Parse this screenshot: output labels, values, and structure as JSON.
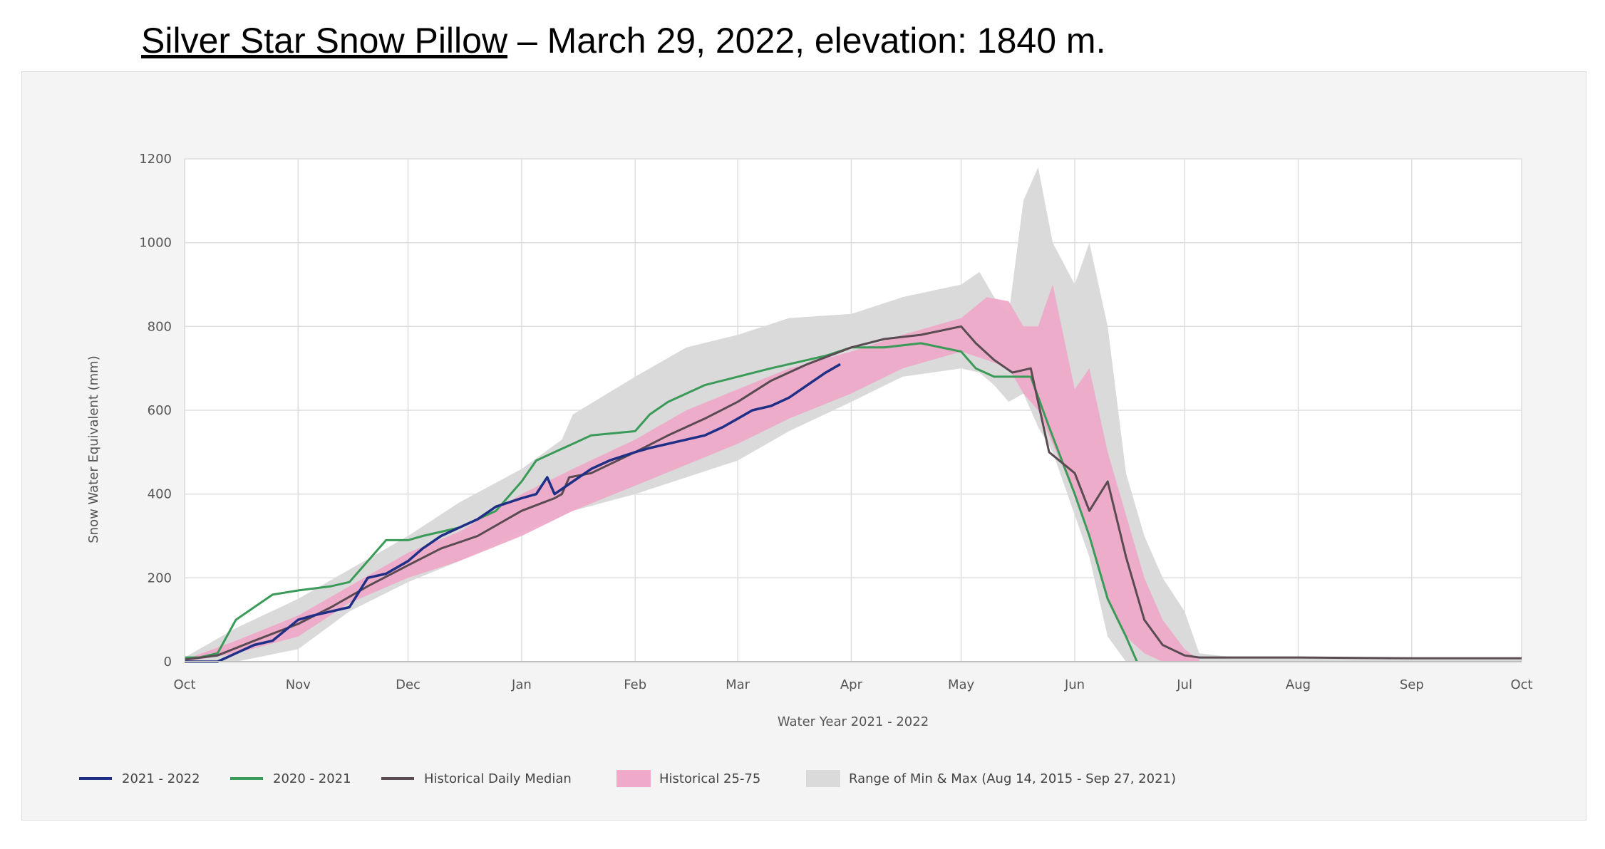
{
  "title": {
    "name": "Silver Star Snow Pillow",
    "rest": " – March 29, 2022, elevation: 1840 m."
  },
  "chart_data": {
    "type": "area",
    "xlabel": "Water Year 2021 - 2022",
    "ylabel": "Snow Water Equivalent (mm)",
    "ylim": [
      0,
      1200
    ],
    "yticks": [
      "0",
      "200",
      "400",
      "600",
      "800",
      "1000",
      "1200"
    ],
    "xlim": [
      "2021-10-01",
      "2022-10-01"
    ],
    "xticks": [
      {
        "date": "2021-10-01",
        "label": "Oct"
      },
      {
        "date": "2021-11-01",
        "label": "Nov"
      },
      {
        "date": "2021-12-01",
        "label": "Dec"
      },
      {
        "date": "2022-01-01",
        "label": "Jan"
      },
      {
        "date": "2022-02-01",
        "label": "Feb"
      },
      {
        "date": "2022-03-01",
        "label": "Mar"
      },
      {
        "date": "2022-04-01",
        "label": "Apr"
      },
      {
        "date": "2022-05-01",
        "label": "May"
      },
      {
        "date": "2022-06-01",
        "label": "Jun"
      },
      {
        "date": "2022-07-01",
        "label": "Jul"
      },
      {
        "date": "2022-08-01",
        "label": "Aug"
      },
      {
        "date": "2022-09-01",
        "label": "Sep"
      },
      {
        "date": "2022-10-01",
        "label": "Oct"
      }
    ],
    "grid": true,
    "legend_position": "bottom-left",
    "colors": {
      "current": "#1f2f86",
      "previous": "#3a9a58",
      "median": "#5a4a52",
      "p25_75": "#eeaac8",
      "minmax": "#dadada"
    },
    "legend": [
      {
        "label": "2021 - 2022",
        "kind": "line",
        "key": "current"
      },
      {
        "label": "2020 - 2021",
        "kind": "line",
        "key": "previous"
      },
      {
        "label": "Historical Daily Median",
        "kind": "line",
        "key": "median"
      },
      {
        "label": "Historical 25-75",
        "kind": "band",
        "key": "p25_75"
      },
      {
        "label": "Range of Min & Max (Aug 14, 2015 - Sep 27, 2021)",
        "kind": "band",
        "key": "minmax"
      }
    ],
    "bands": [
      {
        "name": "Range of Min & Max (Aug 14, 2015 - Sep 27, 2021)",
        "key": "minmax",
        "x": [
          "2021-10-01",
          "2021-10-15",
          "2021-11-01",
          "2021-11-15",
          "2021-12-01",
          "2021-12-15",
          "2022-01-01",
          "2022-01-12",
          "2022-01-15",
          "2022-02-01",
          "2022-02-15",
          "2022-03-01",
          "2022-03-15",
          "2022-04-01",
          "2022-04-15",
          "2022-05-01",
          "2022-05-06",
          "2022-05-10",
          "2022-05-14",
          "2022-05-18",
          "2022-05-22",
          "2022-05-26",
          "2022-06-01",
          "2022-06-05",
          "2022-06-10",
          "2022-06-15",
          "2022-06-20",
          "2022-06-25",
          "2022-07-01",
          "2022-07-05",
          "2022-07-15",
          "2022-08-01",
          "2022-09-01",
          "2022-10-01"
        ],
        "low": [
          0,
          0,
          30,
          120,
          190,
          240,
          310,
          350,
          360,
          400,
          440,
          480,
          550,
          620,
          680,
          700,
          690,
          660,
          620,
          640,
          560,
          500,
          350,
          250,
          60,
          0,
          0,
          0,
          0,
          0,
          0,
          0,
          0,
          0
        ],
        "high": [
          10,
          80,
          150,
          220,
          300,
          380,
          460,
          530,
          590,
          680,
          750,
          780,
          820,
          830,
          870,
          900,
          930,
          870,
          830,
          1100,
          1180,
          1000,
          900,
          1000,
          800,
          450,
          300,
          200,
          120,
          20,
          10,
          10,
          5,
          5
        ]
      },
      {
        "name": "Historical 25-75",
        "key": "p25_75",
        "x": [
          "2021-10-01",
          "2021-10-15",
          "2021-11-01",
          "2021-11-15",
          "2021-12-01",
          "2021-12-15",
          "2022-01-01",
          "2022-01-15",
          "2022-02-01",
          "2022-02-15",
          "2022-03-01",
          "2022-03-15",
          "2022-04-01",
          "2022-04-15",
          "2022-05-01",
          "2022-05-08",
          "2022-05-14",
          "2022-05-18",
          "2022-05-22",
          "2022-05-26",
          "2022-06-01",
          "2022-06-05",
          "2022-06-10",
          "2022-06-15",
          "2022-06-20",
          "2022-06-25",
          "2022-07-01",
          "2022-07-05"
        ],
        "low": [
          0,
          20,
          60,
          140,
          200,
          240,
          300,
          360,
          420,
          470,
          520,
          580,
          640,
          700,
          740,
          720,
          700,
          640,
          600,
          520,
          400,
          300,
          150,
          60,
          20,
          0,
          0,
          0
        ],
        "high": [
          5,
          50,
          110,
          180,
          260,
          310,
          400,
          460,
          530,
          600,
          650,
          700,
          740,
          780,
          820,
          870,
          860,
          800,
          800,
          900,
          650,
          700,
          500,
          350,
          200,
          100,
          30,
          5
        ]
      }
    ],
    "series": [
      {
        "name": "2021 - 2022",
        "key": "current",
        "x": [
          "2021-10-01",
          "2021-10-08",
          "2021-10-10",
          "2021-10-15",
          "2021-10-20",
          "2021-10-25",
          "2021-11-01",
          "2021-11-05",
          "2021-11-10",
          "2021-11-15",
          "2021-11-20",
          "2021-11-25",
          "2021-12-01",
          "2021-12-05",
          "2021-12-10",
          "2021-12-15",
          "2021-12-20",
          "2021-12-25",
          "2022-01-01",
          "2022-01-05",
          "2022-01-08",
          "2022-01-10",
          "2022-01-15",
          "2022-01-20",
          "2022-01-25",
          "2022-02-01",
          "2022-02-05",
          "2022-02-10",
          "2022-02-15",
          "2022-02-20",
          "2022-02-25",
          "2022-03-01",
          "2022-03-05",
          "2022-03-10",
          "2022-03-15",
          "2022-03-20",
          "2022-03-25",
          "2022-03-29"
        ],
        "y": [
          0,
          0,
          0,
          20,
          40,
          50,
          100,
          110,
          120,
          130,
          200,
          210,
          240,
          270,
          300,
          320,
          340,
          370,
          390,
          400,
          440,
          400,
          430,
          460,
          480,
          500,
          510,
          520,
          530,
          540,
          560,
          580,
          600,
          610,
          630,
          660,
          690,
          710
        ]
      },
      {
        "name": "2020 - 2021",
        "key": "previous",
        "x": [
          "2021-10-01",
          "2021-10-05",
          "2021-10-10",
          "2021-10-15",
          "2021-10-20",
          "2021-10-25",
          "2021-11-01",
          "2021-11-10",
          "2021-11-15",
          "2021-11-20",
          "2021-11-25",
          "2021-12-01",
          "2021-12-05",
          "2021-12-15",
          "2021-12-25",
          "2022-01-01",
          "2022-01-05",
          "2022-01-10",
          "2022-01-15",
          "2022-01-20",
          "2022-02-01",
          "2022-02-05",
          "2022-02-10",
          "2022-02-15",
          "2022-02-20",
          "2022-03-01",
          "2022-03-10",
          "2022-03-15",
          "2022-03-20",
          "2022-03-25",
          "2022-04-01",
          "2022-04-10",
          "2022-04-20",
          "2022-05-01",
          "2022-05-05",
          "2022-05-10",
          "2022-05-15",
          "2022-05-20",
          "2022-05-25",
          "2022-06-01",
          "2022-06-05",
          "2022-06-10",
          "2022-06-15",
          "2022-06-18"
        ],
        "y": [
          10,
          10,
          20,
          100,
          130,
          160,
          170,
          180,
          190,
          240,
          290,
          290,
          300,
          320,
          360,
          430,
          480,
          500,
          520,
          540,
          550,
          590,
          620,
          640,
          660,
          680,
          700,
          710,
          720,
          730,
          750,
          750,
          760,
          740,
          700,
          680,
          680,
          680,
          560,
          400,
          300,
          150,
          60,
          0
        ]
      },
      {
        "name": "Historical Daily Median",
        "key": "median",
        "x": [
          "2021-10-01",
          "2021-10-10",
          "2021-10-20",
          "2021-11-01",
          "2021-11-10",
          "2021-11-20",
          "2021-12-01",
          "2021-12-10",
          "2021-12-20",
          "2022-01-01",
          "2022-01-10",
          "2022-01-12",
          "2022-01-14",
          "2022-01-20",
          "2022-02-01",
          "2022-02-10",
          "2022-02-20",
          "2022-03-01",
          "2022-03-10",
          "2022-03-20",
          "2022-04-01",
          "2022-04-10",
          "2022-04-20",
          "2022-05-01",
          "2022-05-05",
          "2022-05-10",
          "2022-05-15",
          "2022-05-20",
          "2022-05-25",
          "2022-06-01",
          "2022-06-05",
          "2022-06-10",
          "2022-06-15",
          "2022-06-20",
          "2022-06-25",
          "2022-07-01",
          "2022-07-05",
          "2022-07-15",
          "2022-08-01",
          "2022-09-01",
          "2022-10-01"
        ],
        "y": [
          5,
          15,
          50,
          90,
          130,
          180,
          230,
          270,
          300,
          360,
          390,
          400,
          440,
          450,
          500,
          540,
          580,
          620,
          670,
          710,
          750,
          770,
          780,
          800,
          760,
          720,
          690,
          700,
          500,
          450,
          360,
          430,
          250,
          100,
          40,
          15,
          10,
          10,
          10,
          8,
          8
        ]
      }
    ]
  }
}
